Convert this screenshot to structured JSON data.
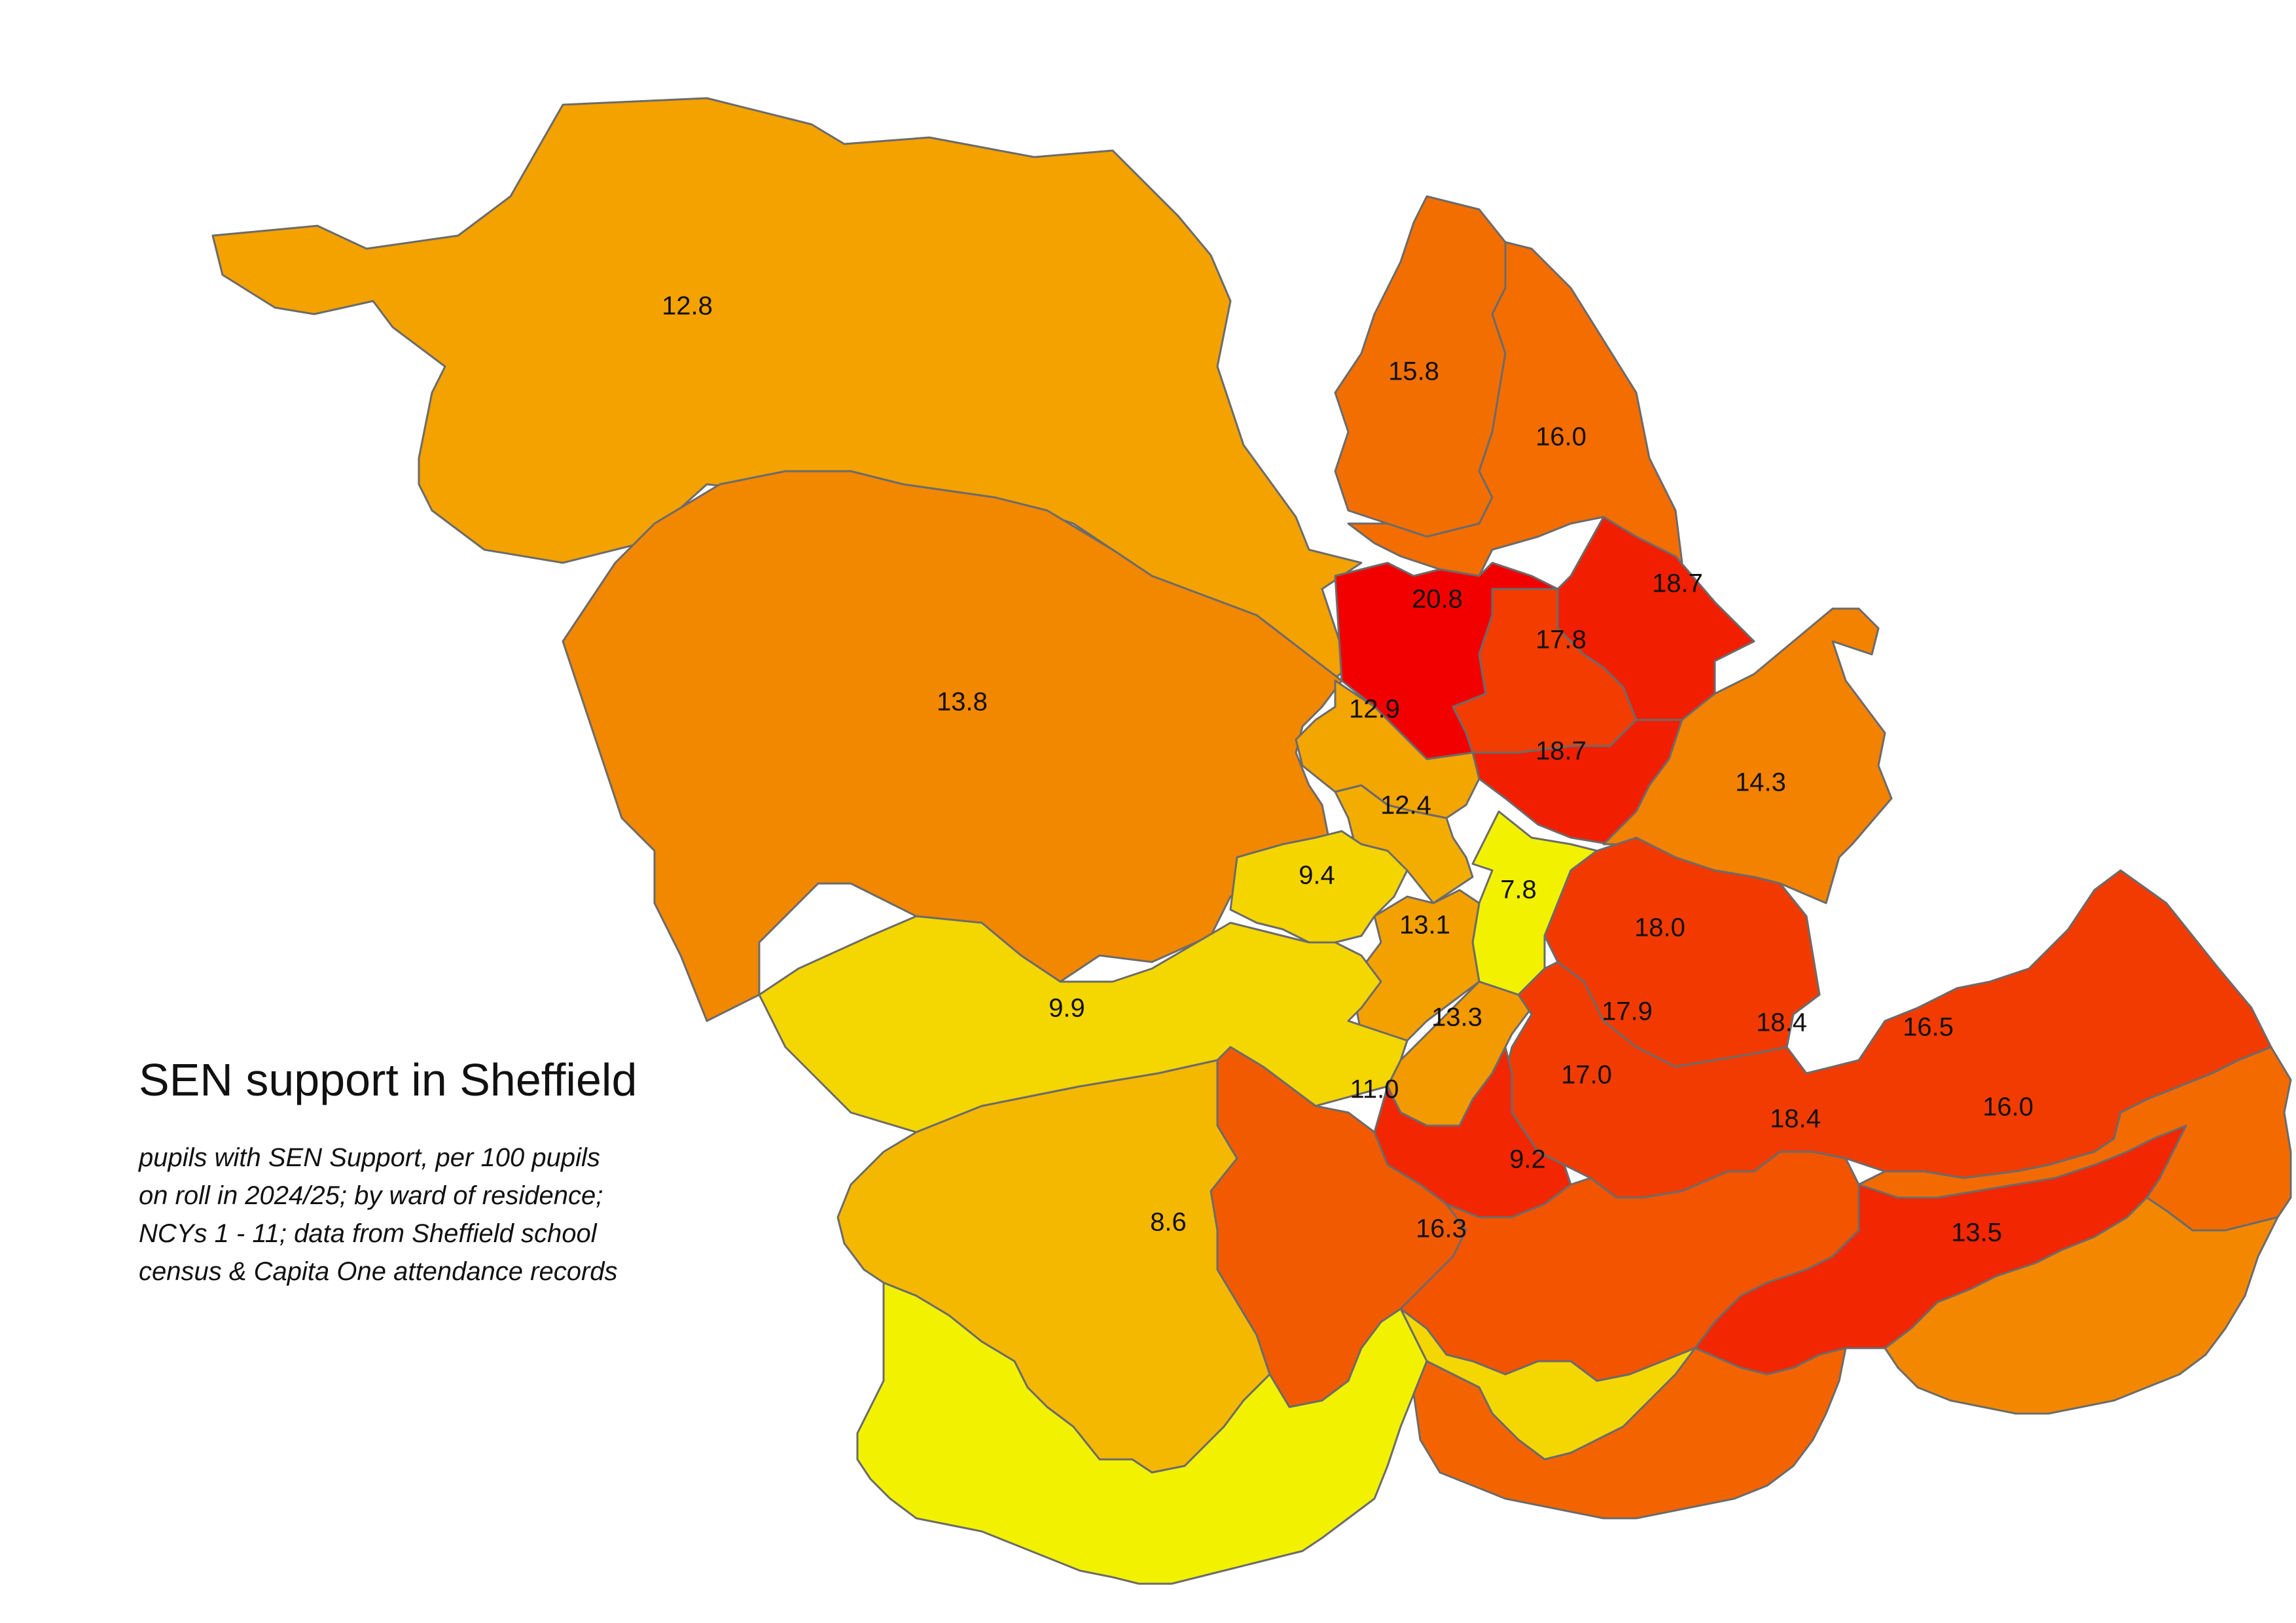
{
  "title": "SEN support in Sheffield",
  "subtitle_lines": [
    "pupils with SEN Support, per 100 pupils",
    "on roll in 2024/25; by ward of residence;",
    "NCYs 1 - 11; data from Sheffield school",
    "census & Capita One attendance records"
  ],
  "colors": {
    "background": "#ffffff",
    "border": "#6b6b6b",
    "scale": [
      "#f2f200",
      "#f5d200",
      "#f3ae00",
      "#f3a000",
      "#f38a00",
      "#f36e00",
      "#f25400",
      "#f23a00",
      "#f21d00",
      "#f20000"
    ]
  },
  "map": {
    "type": "choropleth",
    "region": "Sheffield",
    "wards": [
      {
        "value": "12.8",
        "color": "#f3a200"
      },
      {
        "value": "13.8",
        "color": "#f28700"
      },
      {
        "value": "15.8",
        "color": "#f36e00"
      },
      {
        "value": "16.0",
        "color": "#f36d00"
      },
      {
        "value": "20.8",
        "color": "#f20000"
      },
      {
        "value": "18.7",
        "color": "#f21e00"
      },
      {
        "value": "17.8",
        "color": "#f23c00"
      },
      {
        "value": "18.7",
        "color": "#f21e00"
      },
      {
        "value": "12.9",
        "color": "#f3a500"
      },
      {
        "value": "14.3",
        "color": "#f38200"
      },
      {
        "value": "12.4",
        "color": "#f3ad00"
      },
      {
        "value": "7.8",
        "color": "#f2f200"
      },
      {
        "value": "9.4",
        "color": "#f4d500"
      },
      {
        "value": "13.1",
        "color": "#f3a100"
      },
      {
        "value": "9.9",
        "color": "#f4d600"
      },
      {
        "value": "13.3",
        "color": "#f39a00"
      },
      {
        "value": "18.0",
        "color": "#f23a00"
      },
      {
        "value": "17.9",
        "color": "#f23b00"
      },
      {
        "value": "18.4",
        "color": "#f22600"
      },
      {
        "value": "16.5",
        "color": "#f25a00"
      },
      {
        "value": "17.0",
        "color": "#f25400"
      },
      {
        "value": "11.0",
        "color": "#f4b800"
      },
      {
        "value": "18.4",
        "color": "#f22600"
      },
      {
        "value": "16.0",
        "color": "#f36b00"
      },
      {
        "value": "9.2",
        "color": "#f4d700"
      },
      {
        "value": "8.6",
        "color": "#f2f200"
      },
      {
        "value": "16.3",
        "color": "#f36400"
      },
      {
        "value": "13.5",
        "color": "#f38800"
      }
    ]
  }
}
